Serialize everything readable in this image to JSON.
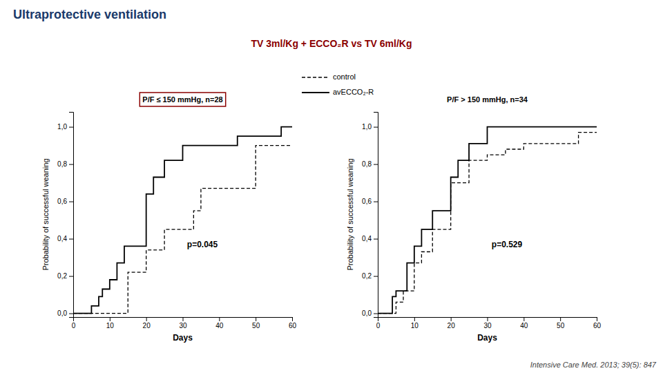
{
  "title": "Ultraprotective ventilation",
  "title_color": "#1a3a6b",
  "subtitle": "TV 3ml/Kg + ECCO₂R vs TV 6ml/Kg",
  "subtitle_color": "#8b0000",
  "annotations": [
    "Intensive Care Med. 2013; 39(5): 847"
  ],
  "legend": "top",
  "chart_data": [
    {
      "type": "step",
      "title": "P/F ≤ 150 mmHg, n=28",
      "x_label": "Days",
      "y_label": "Probability of successful weaning",
      "annotations": [
        "p=0.045"
      ],
      "xlim": [
        0,
        60
      ],
      "ylim": [
        -0.02,
        1.08
      ],
      "xticks": [
        0,
        10,
        20,
        30,
        40,
        50,
        60
      ],
      "yticks": [
        {
          "value": 0.0,
          "label": "0,0"
        },
        {
          "value": 0.2,
          "label": "0,2"
        },
        {
          "value": 0.4,
          "label": "0,4"
        },
        {
          "value": 0.6,
          "label": "0,6"
        },
        {
          "value": 0.8,
          "label": "0,8"
        },
        {
          "value": 1.0,
          "label": "1,0"
        }
      ],
      "grid": false,
      "series": [
        {
          "name": "avECCO₂-R",
          "color": "#000000",
          "line_style": "solid",
          "x": [
            0,
            3,
            5,
            7,
            8,
            10,
            12,
            14,
            20,
            22,
            25,
            30,
            33,
            45,
            57,
            60
          ],
          "values": [
            0,
            0,
            0.04,
            0.09,
            0.13,
            0.18,
            0.27,
            0.36,
            0.64,
            0.73,
            0.82,
            0.9,
            0.9,
            0.95,
            1.0,
            1.0
          ]
        },
        {
          "name": "control",
          "color": "#000000",
          "line_style": "dashed",
          "x": [
            0,
            10,
            14,
            15,
            20,
            25,
            30,
            33,
            35,
            40,
            45,
            50,
            55,
            60
          ],
          "values": [
            0,
            0,
            0.0,
            0.22,
            0.34,
            0.45,
            0.45,
            0.55,
            0.67,
            0.67,
            0.67,
            0.9,
            0.9,
            0.9
          ]
        }
      ]
    },
    {
      "type": "step",
      "title": "P/F > 150 mmHg, n=34",
      "x_label": "Days",
      "y_label": "Probability of successful weaning",
      "annotations": [
        "p=0.529"
      ],
      "xlim": [
        0,
        60
      ],
      "ylim": [
        -0.02,
        1.08
      ],
      "xticks": [
        0,
        10,
        20,
        30,
        40,
        50,
        60
      ],
      "yticks": [
        {
          "value": 0.0,
          "label": "0,0"
        },
        {
          "value": 0.2,
          "label": "0,2"
        },
        {
          "value": 0.4,
          "label": "0,4"
        },
        {
          "value": 0.6,
          "label": "0,6"
        },
        {
          "value": 0.8,
          "label": "0,8"
        },
        {
          "value": 1.0,
          "label": "1,0"
        }
      ],
      "grid": false,
      "series": [
        {
          "name": "avECCO₂-R",
          "color": "#000000",
          "line_style": "solid",
          "x": [
            0,
            4,
            5,
            8,
            10,
            12,
            15,
            20,
            22,
            25,
            28,
            30,
            45,
            47,
            60
          ],
          "values": [
            0,
            0.09,
            0.12,
            0.27,
            0.36,
            0.45,
            0.55,
            0.73,
            0.82,
            0.91,
            0.91,
            1.0,
            1.0,
            1.0,
            1.0
          ]
        },
        {
          "name": "control",
          "color": "#000000",
          "line_style": "dashed",
          "x": [
            0,
            3,
            5,
            7,
            10,
            12,
            15,
            20,
            25,
            30,
            35,
            40,
            45,
            55,
            60
          ],
          "values": [
            0,
            0.0,
            0.06,
            0.12,
            0.27,
            0.33,
            0.45,
            0.7,
            0.82,
            0.85,
            0.88,
            0.91,
            0.91,
            0.97,
            0.97
          ]
        }
      ]
    }
  ]
}
